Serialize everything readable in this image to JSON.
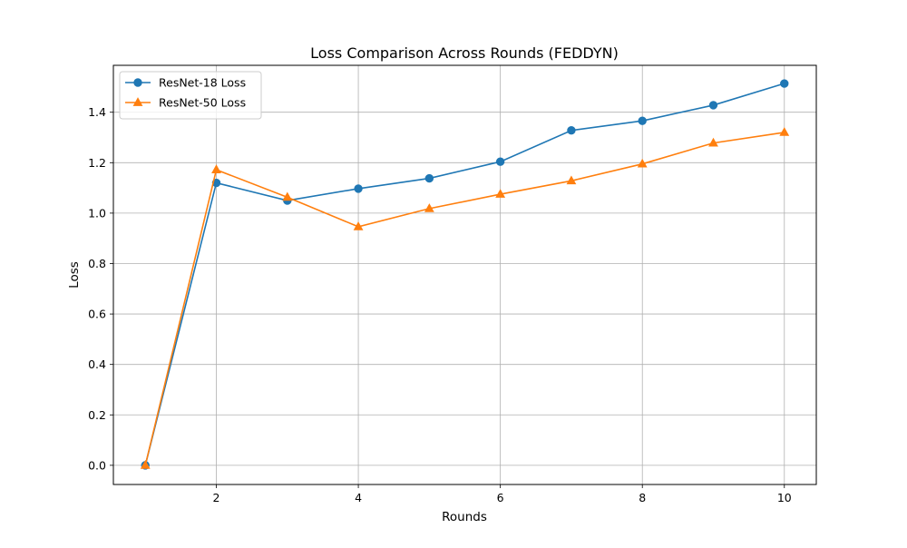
{
  "chart_data": {
    "type": "line",
    "title": "Loss Comparison Across Rounds (FEDDYN)",
    "xlabel": "Rounds",
    "ylabel": "Loss",
    "xlim": [
      0.55,
      10.45
    ],
    "ylim": [
      -0.076,
      1.586
    ],
    "xticks": [
      2,
      4,
      6,
      8,
      10
    ],
    "yticks": [
      0.0,
      0.2,
      0.4,
      0.6,
      0.8,
      1.0,
      1.2,
      1.4
    ],
    "grid": true,
    "legend_position": "top-left",
    "x": [
      1,
      2,
      3,
      4,
      5,
      6,
      7,
      8,
      9,
      10
    ],
    "series": [
      {
        "name": "ResNet-18 Loss",
        "color": "#1f77b4",
        "marker": "circle",
        "values": [
          0.0,
          1.12,
          1.05,
          1.097,
          1.138,
          1.204,
          1.328,
          1.366,
          1.428,
          1.514
        ]
      },
      {
        "name": "ResNet-50 Loss",
        "color": "#ff7f0e",
        "marker": "triangle",
        "values": [
          0.0,
          1.172,
          1.063,
          0.946,
          1.018,
          1.075,
          1.128,
          1.195,
          1.278,
          1.32
        ]
      }
    ]
  }
}
